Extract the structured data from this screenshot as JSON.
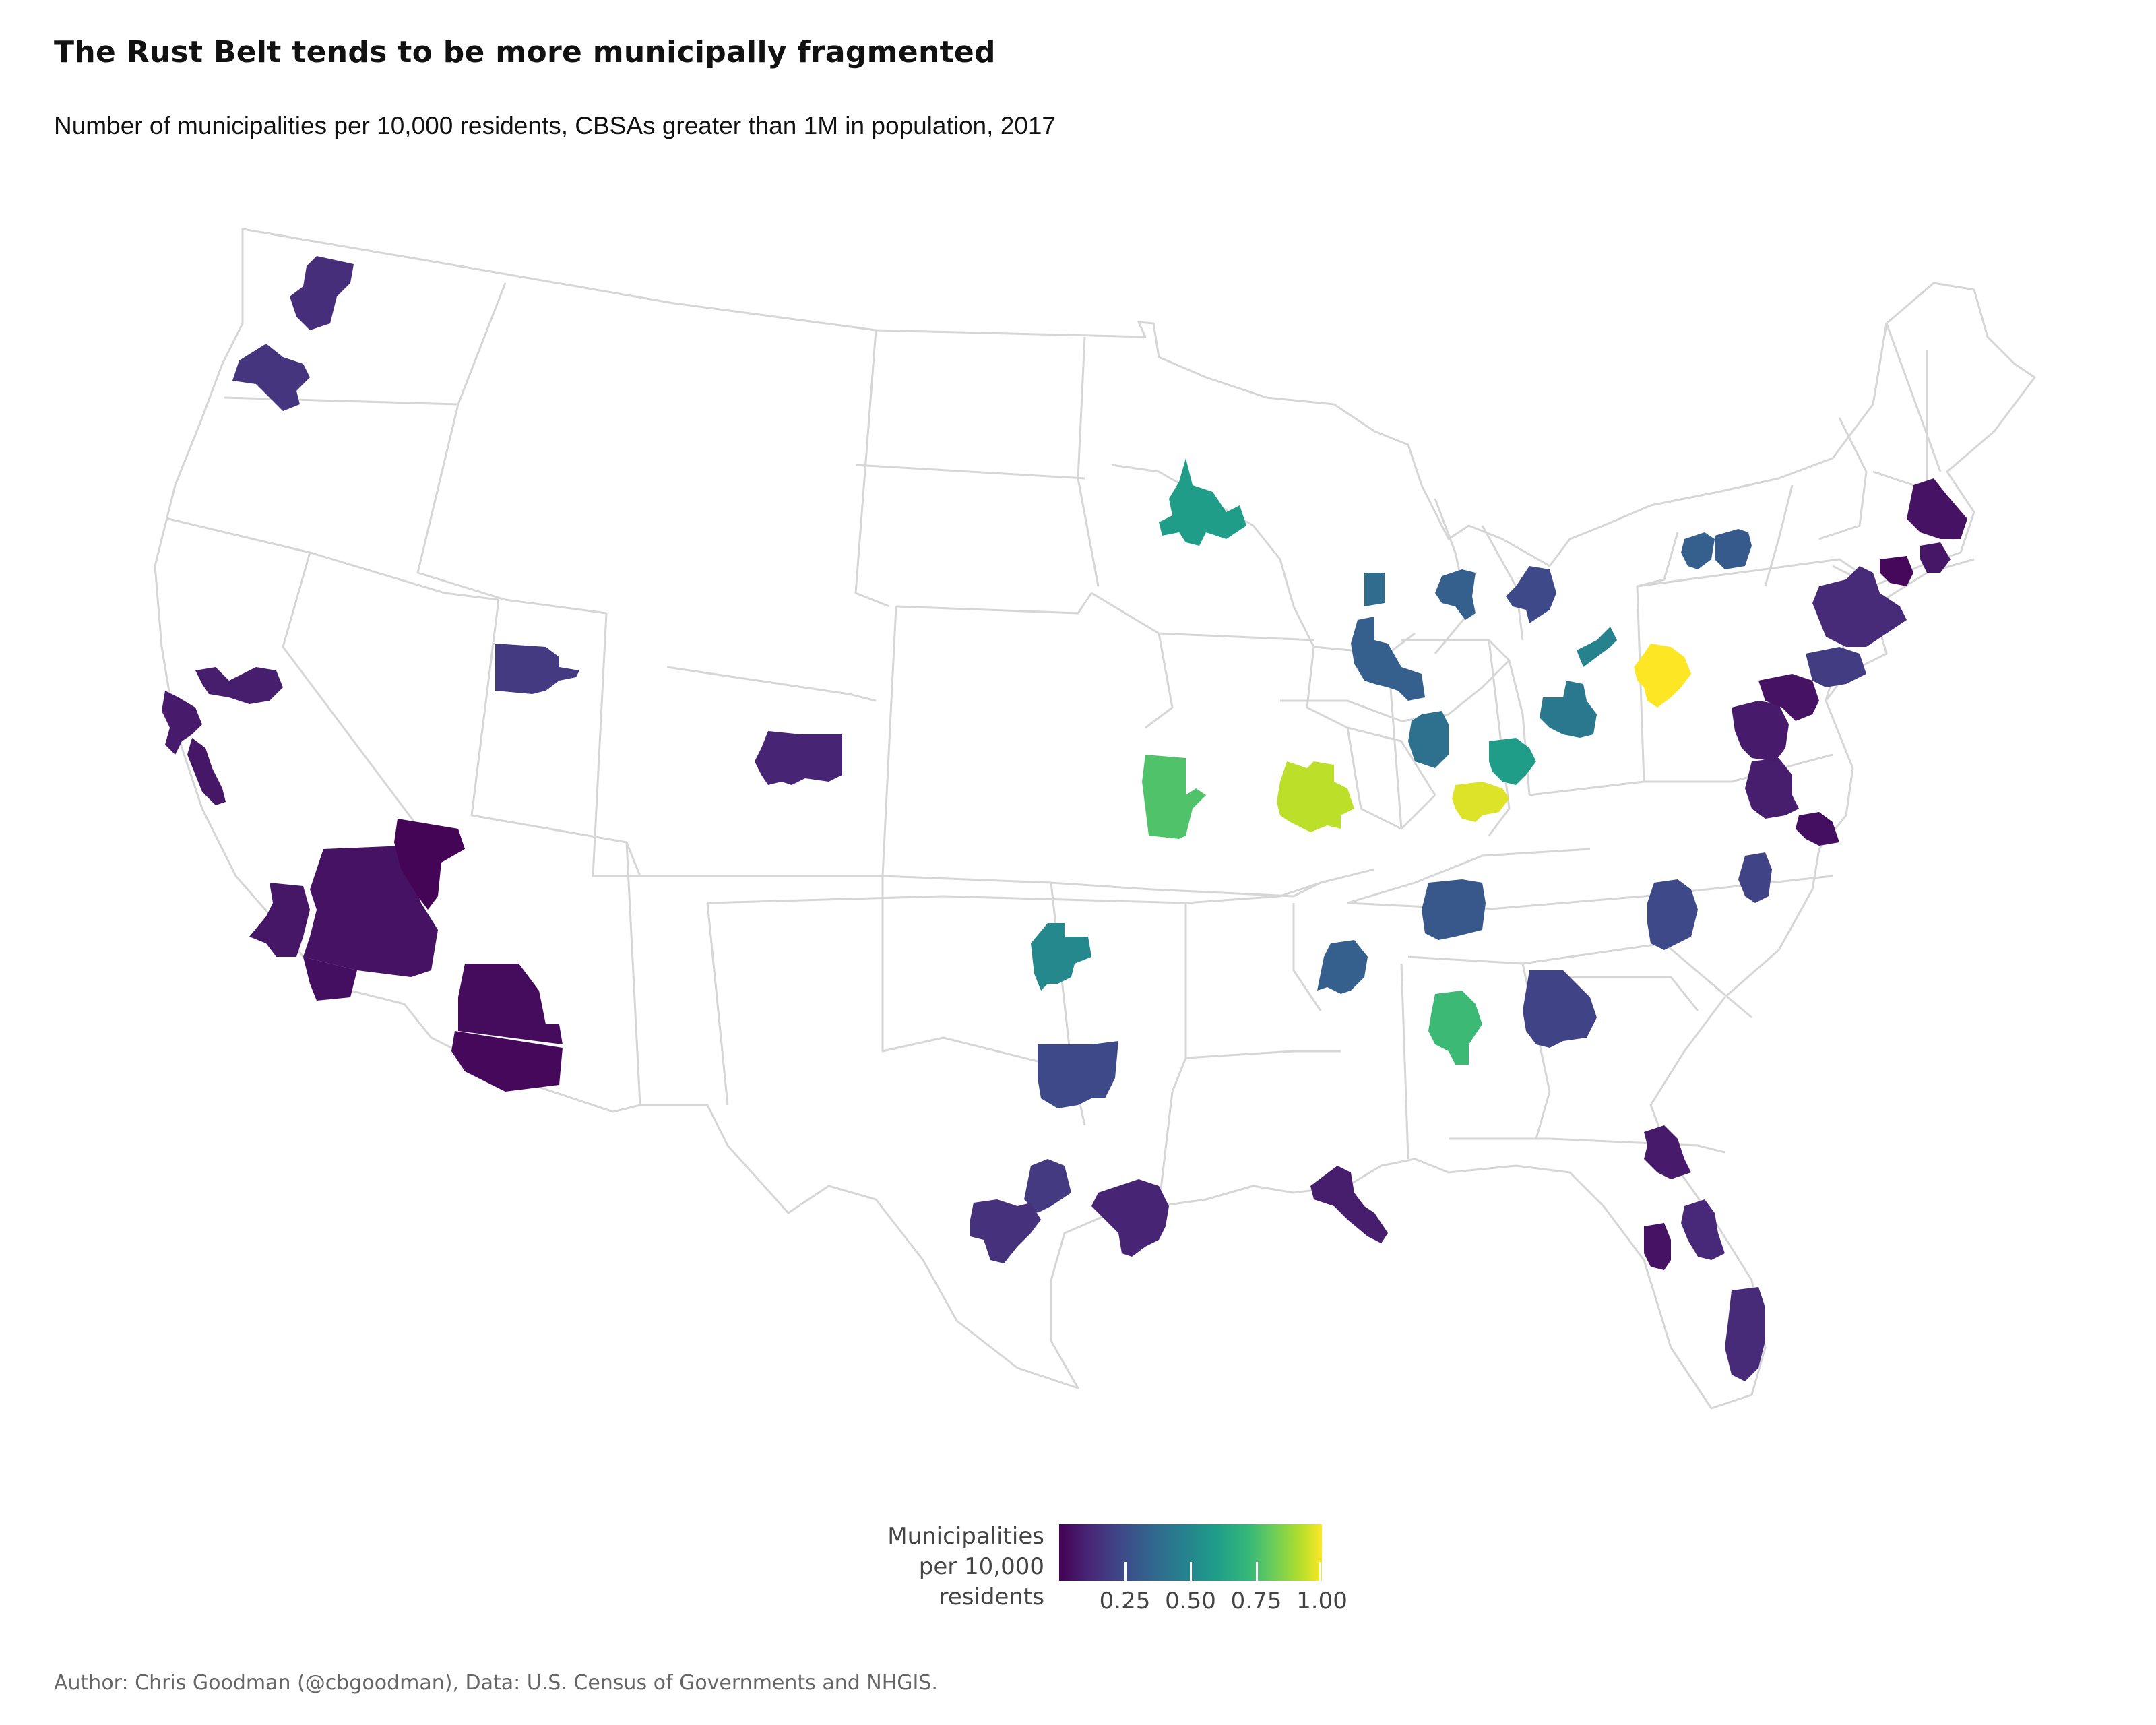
{
  "title": "The Rust Belt tends to be more municipally fragmented",
  "subtitle": "Number of municipalities per 10,000 residents, CBSAs greater than 1M in population, 2017",
  "legend": {
    "title_lines": [
      "Municipalities",
      "per 10,000",
      "residents"
    ],
    "ticks": [
      {
        "label": "0.25",
        "value": 0.25
      },
      {
        "label": "0.50",
        "value": 0.5
      },
      {
        "label": "0.75",
        "value": 0.75
      },
      {
        "label": "1.00",
        "value": 1.0
      }
    ],
    "range": [
      0.0,
      1.0
    ],
    "colors": [
      "#440154",
      "#482878",
      "#3e4a89",
      "#31688e",
      "#26828e",
      "#1f9e89",
      "#35b779",
      "#6ece58",
      "#b5de2b",
      "#fde725"
    ]
  },
  "caption": "Author: Chris Goodman (@cbgoodman), Data: U.S. Census of Governments and NHGIS.",
  "chart_data": {
    "type": "choropleth",
    "color_scale": "viridis",
    "regions": [
      {
        "id": "seattle",
        "value": 0.13
      },
      {
        "id": "portland",
        "value": 0.15
      },
      {
        "id": "sacramento",
        "value": 0.08
      },
      {
        "id": "san-francisco",
        "value": 0.07
      },
      {
        "id": "san-jose",
        "value": 0.06
      },
      {
        "id": "los-angeles",
        "value": 0.06
      },
      {
        "id": "riverside",
        "value": 0.05
      },
      {
        "id": "san-diego",
        "value": 0.04
      },
      {
        "id": "las-vegas",
        "value": 0.01
      },
      {
        "id": "phoenix",
        "value": 0.03
      },
      {
        "id": "tucson",
        "value": 0.02
      },
      {
        "id": "salt-lake-city",
        "value": 0.17
      },
      {
        "id": "denver",
        "value": 0.1
      },
      {
        "id": "minneapolis",
        "value": 0.55
      },
      {
        "id": "kansas-city",
        "value": 0.72
      },
      {
        "id": "st-louis",
        "value": 0.9
      },
      {
        "id": "oklahoma-city",
        "value": 0.47
      },
      {
        "id": "dallas",
        "value": 0.22
      },
      {
        "id": "austin",
        "value": 0.17
      },
      {
        "id": "san-antonio",
        "value": 0.14
      },
      {
        "id": "houston",
        "value": 0.1
      },
      {
        "id": "new-orleans",
        "value": 0.08
      },
      {
        "id": "milwaukee",
        "value": 0.35
      },
      {
        "id": "chicago",
        "value": 0.3
      },
      {
        "id": "grand-rapids",
        "value": 0.3
      },
      {
        "id": "detroit",
        "value": 0.22
      },
      {
        "id": "cleveland",
        "value": 0.45
      },
      {
        "id": "columbus",
        "value": 0.4
      },
      {
        "id": "indianapolis",
        "value": 0.37
      },
      {
        "id": "cincinnati",
        "value": 0.55
      },
      {
        "id": "louisville",
        "value": 0.95
      },
      {
        "id": "pittsburgh",
        "value": 1.0
      },
      {
        "id": "buffalo",
        "value": 0.3
      },
      {
        "id": "rochester",
        "value": 0.28
      },
      {
        "id": "nashville",
        "value": 0.27
      },
      {
        "id": "memphis",
        "value": 0.3
      },
      {
        "id": "birmingham",
        "value": 0.68
      },
      {
        "id": "atlanta",
        "value": 0.2
      },
      {
        "id": "charlotte",
        "value": 0.22
      },
      {
        "id": "raleigh",
        "value": 0.2
      },
      {
        "id": "richmond",
        "value": 0.08
      },
      {
        "id": "virginia-beach",
        "value": 0.04
      },
      {
        "id": "washington",
        "value": 0.07
      },
      {
        "id": "baltimore",
        "value": 0.05
      },
      {
        "id": "philadelphia",
        "value": 0.18
      },
      {
        "id": "new-york",
        "value": 0.12
      },
      {
        "id": "hartford",
        "value": 0.02
      },
      {
        "id": "providence",
        "value": 0.06
      },
      {
        "id": "boston",
        "value": 0.05
      },
      {
        "id": "jacksonville",
        "value": 0.07
      },
      {
        "id": "orlando",
        "value": 0.11
      },
      {
        "id": "tampa",
        "value": 0.05
      },
      {
        "id": "miami",
        "value": 0.12
      }
    ]
  }
}
